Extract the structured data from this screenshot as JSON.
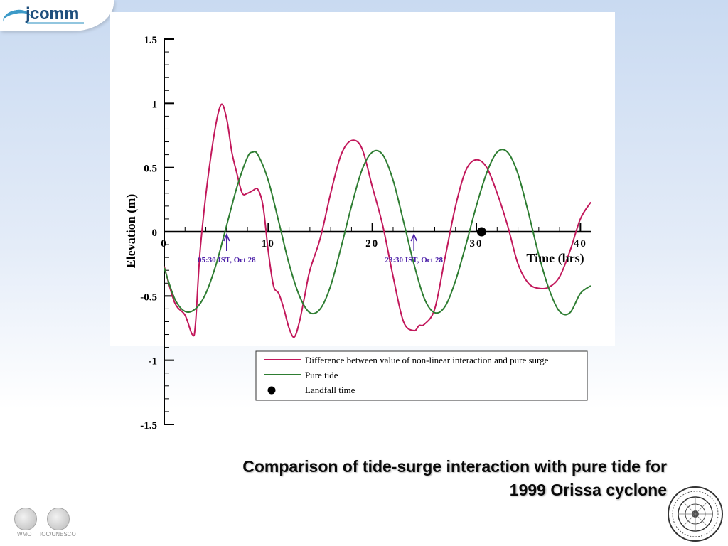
{
  "header": {
    "logo_text": "jcomm"
  },
  "chart_data": {
    "type": "line",
    "xlabel": "Time (hrs)",
    "ylabel": "Elevation (m)",
    "xlim": [
      0,
      41
    ],
    "ylim": [
      -1.5,
      1.5
    ],
    "x_ticks": [
      0,
      10,
      20,
      30,
      40
    ],
    "x_tick_labels": [
      "0",
      "10",
      "20",
      "30",
      "40"
    ],
    "y_ticks": [
      1.5,
      1,
      0.5,
      0,
      -0.5,
      -1,
      -1.5
    ],
    "y_tick_labels": [
      "1.5",
      "1",
      "0.5",
      "0",
      "-0.5",
      "-1",
      "-1.5"
    ],
    "series": [
      {
        "name": "Difference between value of non-linear interaction and pure surge",
        "color": "#c2185b",
        "x": [
          0,
          1,
          2,
          2.7,
          3,
          3.5,
          4.5,
          5.4,
          6,
          6.5,
          7,
          7.5,
          8,
          8.5,
          9,
          9.5,
          10,
          10.5,
          11,
          11.5,
          12,
          12.5,
          13,
          13.5,
          14,
          15,
          16,
          17,
          18,
          19,
          20,
          21,
          22,
          23,
          24,
          24.5,
          25,
          26,
          27,
          28,
          29,
          30,
          31,
          32,
          33,
          34,
          35,
          36,
          37,
          38,
          39,
          40,
          41
        ],
        "values": [
          -0.27,
          -0.55,
          -0.65,
          -0.8,
          -0.72,
          -0.1,
          0.6,
          0.98,
          0.88,
          0.62,
          0.45,
          0.3,
          0.3,
          0.32,
          0.33,
          0.2,
          -0.15,
          -0.42,
          -0.48,
          -0.6,
          -0.75,
          -0.82,
          -0.7,
          -0.5,
          -0.3,
          -0.05,
          0.3,
          0.6,
          0.71,
          0.65,
          0.35,
          0.05,
          -0.35,
          -0.7,
          -0.77,
          -0.73,
          -0.72,
          -0.6,
          -0.2,
          0.2,
          0.48,
          0.56,
          0.5,
          0.3,
          0.05,
          -0.25,
          -0.4,
          -0.44,
          -0.43,
          -0.35,
          -0.15,
          0.1,
          0.23
        ]
      },
      {
        "name": "Pure tide",
        "color": "#2e7d32",
        "x": [
          0,
          1,
          2,
          3,
          4,
          5,
          6,
          7,
          8,
          8.5,
          9,
          10,
          11,
          12,
          13,
          14,
          15,
          16,
          17,
          18,
          19,
          20,
          21,
          22,
          23,
          24,
          25,
          26,
          27,
          28,
          29,
          30,
          31,
          32,
          33,
          34,
          35,
          36,
          37,
          38,
          39,
          40,
          41
        ],
        "values": [
          -0.28,
          -0.52,
          -0.62,
          -0.6,
          -0.48,
          -0.25,
          0.05,
          0.35,
          0.58,
          0.62,
          0.6,
          0.4,
          0.08,
          -0.25,
          -0.5,
          -0.63,
          -0.6,
          -0.42,
          -0.12,
          0.2,
          0.48,
          0.62,
          0.6,
          0.4,
          0.08,
          -0.25,
          -0.52,
          -0.63,
          -0.58,
          -0.38,
          -0.1,
          0.2,
          0.46,
          0.62,
          0.62,
          0.45,
          0.15,
          -0.18,
          -0.45,
          -0.62,
          -0.63,
          -0.48,
          -0.42
        ]
      }
    ],
    "markers": [
      {
        "name": "Landfall time",
        "x": 30.5,
        "y": 0,
        "color": "#000000"
      }
    ],
    "annotations": [
      {
        "text": "05:30 IST, Oct 28",
        "x": 6,
        "color": "#4b1fa8"
      },
      {
        "text": "23:30 IST, Oct 28",
        "x": 24,
        "color": "#4b1fa8"
      }
    ],
    "legend": {
      "placement": "bottom-right",
      "items": [
        {
          "label": "Difference between value of non-linear interaction and pure surge",
          "type": "line",
          "color": "#c2185b"
        },
        {
          "label": "Pure tide",
          "type": "line",
          "color": "#2e7d32"
        },
        {
          "label": "Landfall time",
          "type": "dot",
          "color": "#000000"
        }
      ]
    },
    "grid": false
  },
  "caption": {
    "line1": "Comparison of tide-surge interaction with pure tide for",
    "line2": "1999 Orissa cyclone"
  },
  "footer": {
    "logos": [
      {
        "label": "WMO",
        "icon": "wmo-emblem-icon"
      },
      {
        "label": "IOC/UNESCO",
        "icon": "ioc-unesco-emblem-icon"
      }
    ]
  }
}
